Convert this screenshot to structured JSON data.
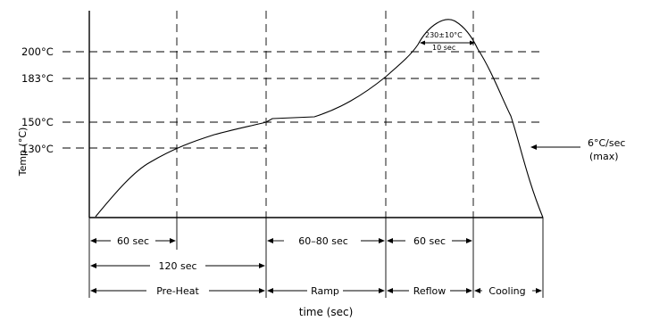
{
  "axis": {
    "y_label": "Temp (°C)",
    "x_label": "time (sec)"
  },
  "y_ticks": [
    {
      "label": "200°C",
      "value": 200
    },
    {
      "label": "183°C",
      "value": 183
    },
    {
      "label": "150°C",
      "value": 150
    },
    {
      "label": "130°C",
      "value": 130
    }
  ],
  "annotations": {
    "peak_temp": "230±10°C",
    "peak_time": "10 sec",
    "cooling_rate_line1": "6°C/sec",
    "cooling_rate_line2": "(max)"
  },
  "durations": {
    "row1": [
      "60 sec",
      "60–80 sec",
      "60 sec"
    ],
    "row2": [
      "120 sec"
    ]
  },
  "phases": [
    "Pre-Heat",
    "Ramp",
    "Reflow",
    "Cooling"
  ],
  "style": {
    "line_color": "#000000",
    "background": "#ffffff"
  }
}
